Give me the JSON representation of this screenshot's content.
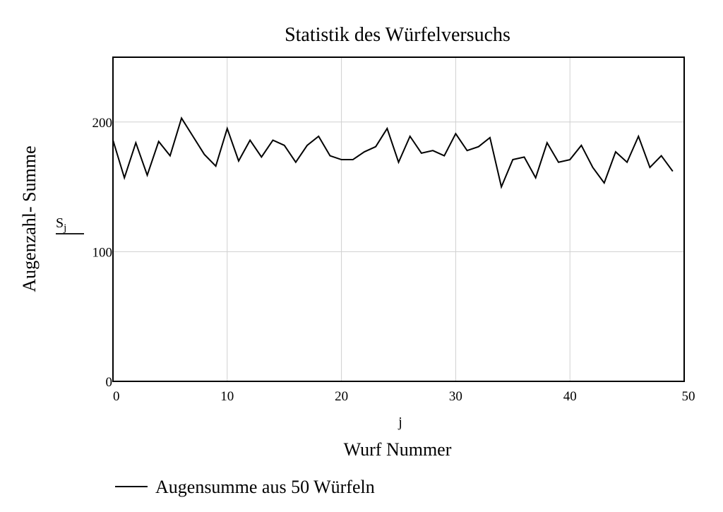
{
  "chart_data": {
    "type": "line",
    "title": "Statistik des Würfelversuchs",
    "xlabel": "Wurf Nummer",
    "xvar": "j",
    "ylabel": "Augenzahl- Summe",
    "yvar_base": "S",
    "yvar_sub": "j",
    "xlim": [
      0,
      50
    ],
    "ylim": [
      0,
      250
    ],
    "xticks": [
      0,
      10,
      20,
      30,
      40,
      50
    ],
    "yticks": [
      0,
      100,
      200
    ],
    "grid": true,
    "legend_position": "bottom-left",
    "series": [
      {
        "name": "Augensumme aus 50 Würfeln",
        "color": "#000000",
        "x": [
          0,
          1,
          2,
          3,
          4,
          5,
          6,
          7,
          8,
          9,
          10,
          11,
          12,
          13,
          14,
          15,
          16,
          17,
          18,
          19,
          20,
          21,
          22,
          23,
          24,
          25,
          26,
          27,
          28,
          29,
          30,
          31,
          32,
          33,
          34,
          35,
          36,
          37,
          38,
          39,
          40,
          41,
          42,
          43,
          44,
          45,
          46,
          47,
          48,
          49
        ],
        "values": [
          186,
          157,
          184,
          159,
          185,
          174,
          203,
          189,
          175,
          166,
          195,
          170,
          186,
          173,
          186,
          182,
          169,
          182,
          189,
          174,
          171,
          171,
          177,
          181,
          195,
          169,
          189,
          176,
          178,
          174,
          191,
          178,
          181,
          188,
          150,
          171,
          173,
          157,
          184,
          169,
          171,
          182,
          165,
          153,
          177,
          169,
          189,
          165,
          174,
          162
        ]
      }
    ]
  }
}
